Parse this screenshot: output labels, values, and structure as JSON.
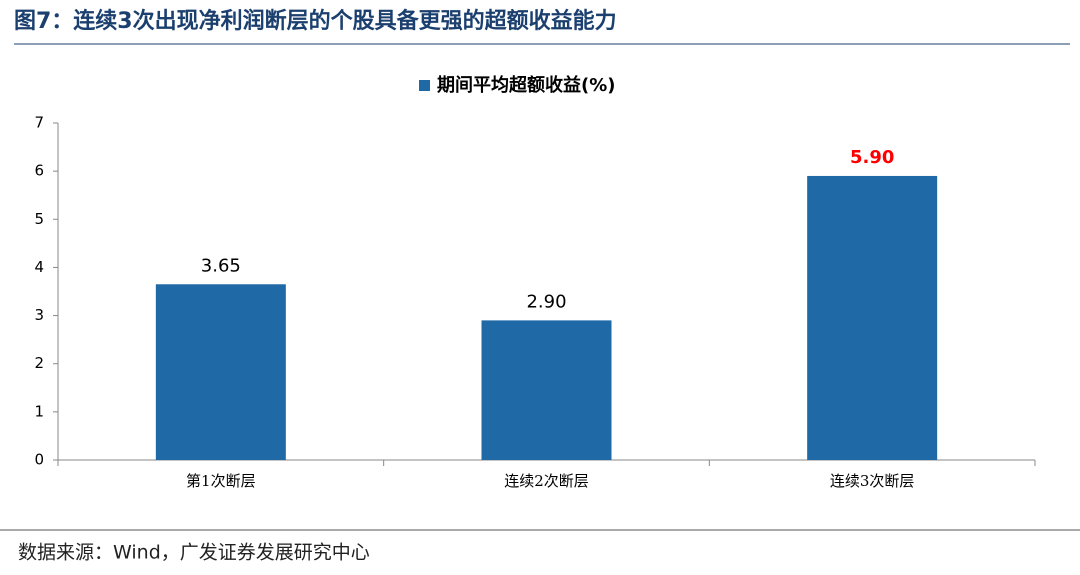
{
  "chart_data": {
    "type": "bar",
    "title": "图7：连续3次出现净利润断层的个股具备更强的超额收益能力",
    "source": "数据来源：Wind，广发证券发展研究中心",
    "categories": [
      "第1次断层",
      "连续2次断层",
      "连续3次断层"
    ],
    "series": [
      {
        "name": "期间平均超额收益(%)",
        "color": "#1f69a6",
        "values": [
          3.65,
          2.9,
          5.9
        ],
        "value_labels": [
          "3.65",
          "2.90",
          "5.90"
        ],
        "value_label_colors": [
          "#000000",
          "#000000",
          "#ff0000"
        ]
      }
    ],
    "ylim": [
      0,
      7
    ],
    "yticks": [
      0,
      1,
      2,
      3,
      4,
      5,
      6,
      7
    ]
  }
}
